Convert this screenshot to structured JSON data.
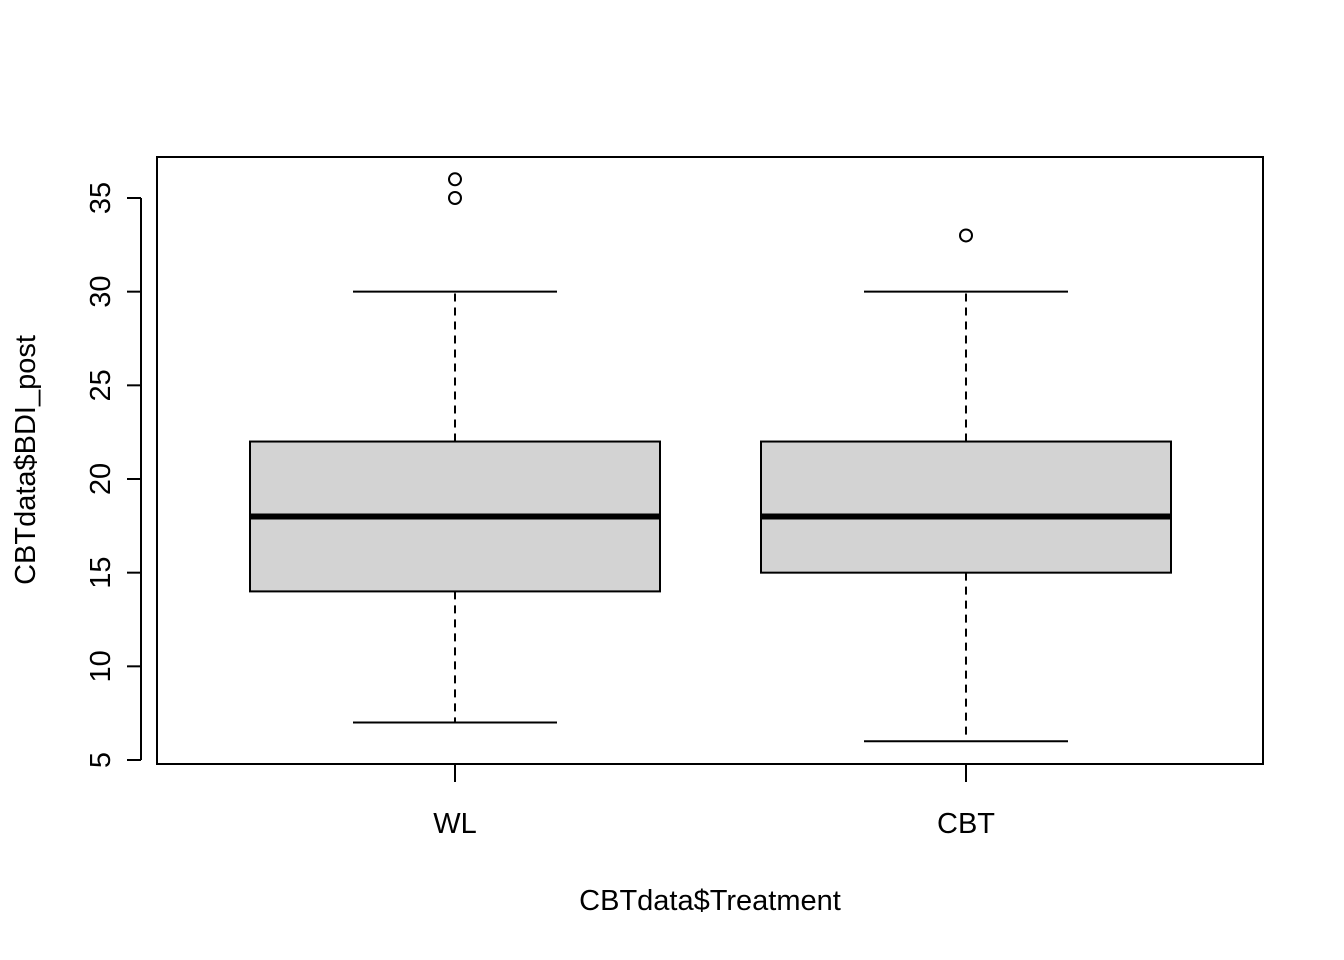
{
  "chart_data": {
    "type": "box",
    "xlabel": "CBTdata$Treatment",
    "ylabel": "CBTdata$BDI_post",
    "categories": [
      "WL",
      "CBT"
    ],
    "yticks": [
      5,
      10,
      15,
      20,
      25,
      30,
      35
    ],
    "ylim": [
      5,
      37
    ],
    "grid": false,
    "box_fill": "#d3d3d3",
    "boxes": [
      {
        "category": "WL",
        "whisker_low": 7,
        "q1": 14,
        "median": 18,
        "q3": 22,
        "whisker_high": 30,
        "outliers": [
          35,
          36
        ]
      },
      {
        "category": "CBT",
        "whisker_low": 6,
        "q1": 15,
        "median": 18,
        "q3": 22,
        "whisker_high": 30,
        "outliers": [
          33
        ]
      }
    ]
  }
}
